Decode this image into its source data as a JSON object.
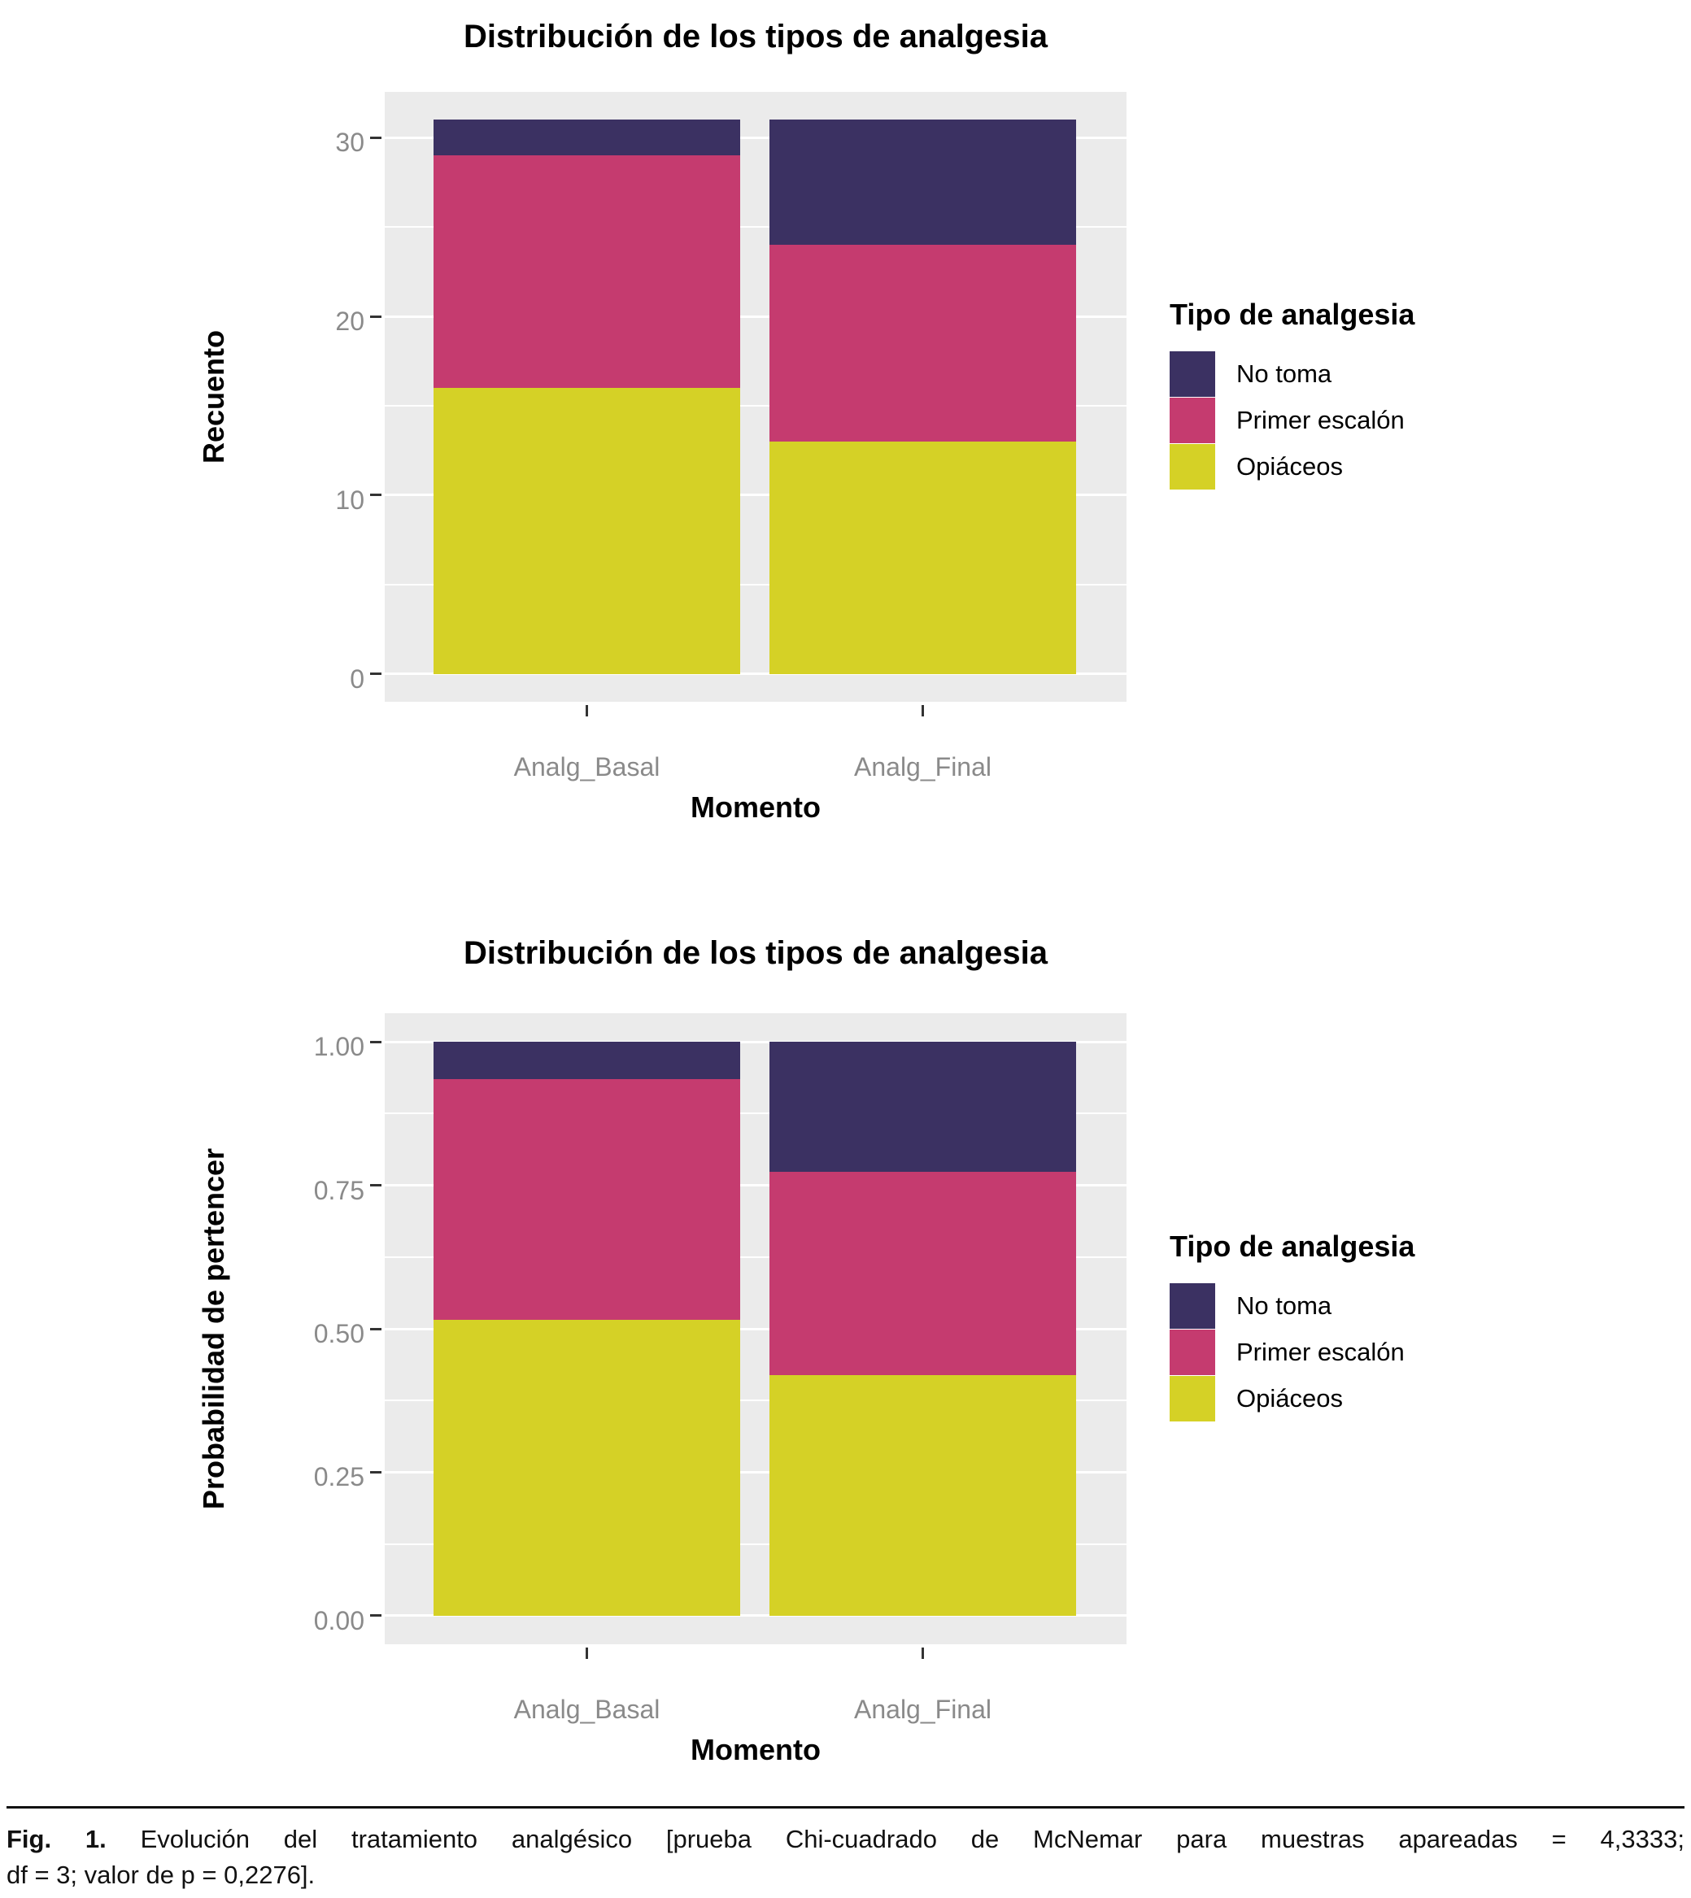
{
  "figure": {
    "caption_bold": "Fig. 1.",
    "caption_line1_rest": " Evolución del tratamiento analgésico [prueba Chi-cuadrado de McNemar para muestras apareadas = 4,3333;",
    "caption_line2": "df = 3; valor de p = 0,2276]."
  },
  "palette": {
    "no_toma": "#3B3162",
    "primer_escalon": "#C53B6F",
    "opiaceos": "#D5D126",
    "panel_background": "#EBEBEB",
    "gridline": "#FFFFFF",
    "tick_label": "#8A8A8A",
    "tick_mark": "#333333"
  },
  "chart_data": [
    {
      "type": "bar",
      "stacked": true,
      "title": "Distribución de los tipos de analgesia",
      "xlabel": "Momento",
      "ylabel": "Recuento",
      "categories": [
        "Analg_Basal",
        "Analg_Final"
      ],
      "series": [
        {
          "name": "No toma",
          "color": "#3B3162",
          "values": [
            2,
            7
          ]
        },
        {
          "name": "Primer escalón",
          "color": "#C53B6F",
          "values": [
            13,
            11
          ]
        },
        {
          "name": "Opiáceos",
          "color": "#D5D126",
          "values": [
            16,
            13
          ]
        }
      ],
      "totals": [
        31,
        31
      ],
      "legend_title": "Tipo de analgesia",
      "legend_position": "right",
      "yticks": [
        0,
        10,
        20,
        30
      ],
      "ytick_labels": [
        "0",
        "10",
        "20",
        "30"
      ],
      "yminor": [
        5,
        15,
        25
      ],
      "ylim": [
        -1.55,
        32.55
      ],
      "grid": true
    },
    {
      "type": "bar",
      "stacked": true,
      "title": "Distribución de los tipos de analgesia",
      "xlabel": "Momento",
      "ylabel": "Probabilidad de pertencer",
      "categories": [
        "Analg_Basal",
        "Analg_Final"
      ],
      "series": [
        {
          "name": "No toma",
          "color": "#3B3162",
          "values": [
            0.065,
            0.226
          ]
        },
        {
          "name": "Primer escalón",
          "color": "#C53B6F",
          "values": [
            0.419,
            0.355
          ]
        },
        {
          "name": "Opiáceos",
          "color": "#D5D126",
          "values": [
            0.516,
            0.419
          ]
        }
      ],
      "totals": [
        1.0,
        1.0
      ],
      "legend_title": "Tipo de analgesia",
      "legend_position": "right",
      "yticks": [
        0,
        0.25,
        0.5,
        0.75,
        1.0
      ],
      "ytick_labels": [
        "0.00",
        "0.25",
        "0.50",
        "0.75",
        "1.00"
      ],
      "yminor": [
        0.125,
        0.375,
        0.625,
        0.875
      ],
      "ylim": [
        -0.05,
        1.05
      ],
      "grid": true
    }
  ]
}
